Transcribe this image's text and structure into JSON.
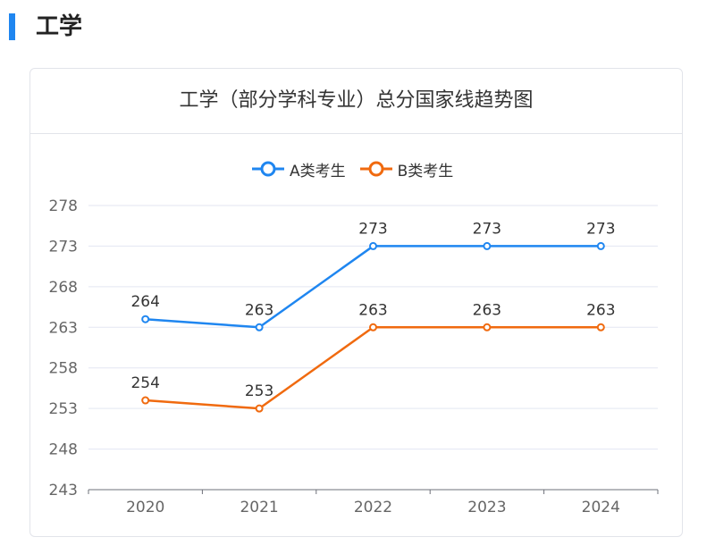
{
  "section": {
    "title": "工学",
    "accent_color": "#1f86f0"
  },
  "card": {
    "title": "工学（部分学科专业）总分国家线趋势图"
  },
  "chart_data": {
    "type": "line",
    "title": "工学（部分学科专业）总分国家线趋势图",
    "categories": [
      "2020",
      "2021",
      "2022",
      "2023",
      "2024"
    ],
    "series": [
      {
        "name": "A类考生",
        "color": "#1f86f0",
        "values": [
          264,
          263,
          273,
          273,
          273
        ]
      },
      {
        "name": "B类考生",
        "color": "#f06a0f",
        "values": [
          254,
          253,
          263,
          263,
          263
        ]
      }
    ],
    "ylim": [
      243,
      278
    ],
    "yticks": [
      243,
      248,
      253,
      258,
      263,
      268,
      273,
      278
    ],
    "grid": true,
    "legend": "top-center",
    "data_labels": true
  }
}
